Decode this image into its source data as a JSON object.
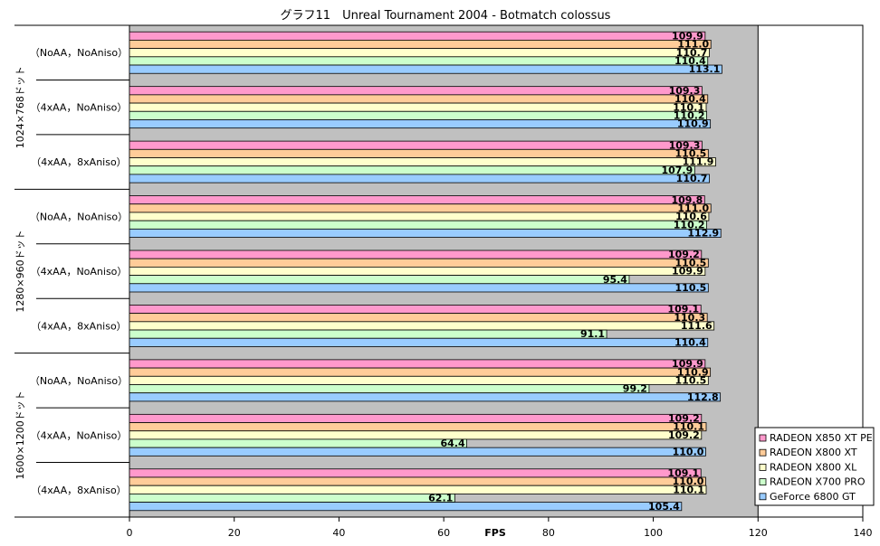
{
  "chart_data": {
    "type": "bar",
    "orientation": "horizontal",
    "title": "グラフ11　Unreal Tournament 2004 - Botmatch colossus",
    "xlabel": "FPS",
    "xlim": [
      0,
      140
    ],
    "xticks": [
      "0",
      "20",
      "40",
      "60",
      "80",
      "100",
      "120",
      "140"
    ],
    "highlight_range": [
      0,
      120
    ],
    "legend_position": "bottom-right",
    "series": [
      {
        "name": "RADEON X850 XT PE",
        "color": "#ff99cc"
      },
      {
        "name": "RADEON X800 XT",
        "color": "#ffcc99"
      },
      {
        "name": "RADEON X800 XL",
        "color": "#ffffcc"
      },
      {
        "name": "RADEON X700 PRO",
        "color": "#ccffcc"
      },
      {
        "name": "GeForce 6800 GT",
        "color": "#99ccff"
      }
    ],
    "resolutions": [
      {
        "label": "1024×768ドット",
        "configs": [
          {
            "label": "（NoAA，NoAniso）",
            "values": [
              109.9,
              111.0,
              110.7,
              110.4,
              113.1
            ],
            "labels": [
              "109.9",
              "111.0",
              "110.7",
              "110.4",
              "113.1"
            ]
          },
          {
            "label": "（4xAA，NoAniso）",
            "values": [
              109.3,
              110.4,
              110.1,
              110.2,
              110.9
            ],
            "labels": [
              "109.3",
              "110.4",
              "110.1",
              "110.2",
              "110.9"
            ]
          },
          {
            "label": "（4xAA，8xAniso）",
            "values": [
              109.3,
              110.5,
              111.9,
              107.9,
              110.7
            ],
            "labels": [
              "109.3",
              "110.5",
              "111.9",
              "107.9",
              "110.7"
            ]
          }
        ]
      },
      {
        "label": "1280×960ドット",
        "configs": [
          {
            "label": "（NoAA，NoAniso）",
            "values": [
              109.8,
              111.0,
              110.6,
              110.2,
              112.9
            ],
            "labels": [
              "109.8",
              "111.0",
              "110.6",
              "110.2",
              "112.9"
            ]
          },
          {
            "label": "（4xAA，NoAniso）",
            "values": [
              109.2,
              110.5,
              109.9,
              95.4,
              110.5
            ],
            "labels": [
              "109.2",
              "110.5",
              "109.9",
              "95.4",
              "110.5"
            ]
          },
          {
            "label": "（4xAA，8xAniso）",
            "values": [
              109.1,
              110.3,
              111.6,
              91.1,
              110.4
            ],
            "labels": [
              "109.1",
              "110.3",
              "111.6",
              "91.1",
              "110.4"
            ]
          }
        ]
      },
      {
        "label": "1600×1200ドット",
        "configs": [
          {
            "label": "（NoAA，NoAniso）",
            "values": [
              109.9,
              110.9,
              110.5,
              99.2,
              112.8
            ],
            "labels": [
              "109.9",
              "110.9",
              "110.5",
              "99.2",
              "112.8"
            ]
          },
          {
            "label": "（4xAA，NoAniso）",
            "values": [
              109.2,
              110.1,
              109.2,
              64.4,
              110.0
            ],
            "labels": [
              "109.2",
              "110.1",
              "109.2",
              "64.4",
              "110.0"
            ]
          },
          {
            "label": "（4xAA，8xAniso）",
            "values": [
              109.1,
              110.0,
              110.1,
              62.1,
              105.4
            ],
            "labels": [
              "109.1",
              "110.0",
              "110.1",
              "62.1",
              "105.4"
            ]
          }
        ]
      }
    ],
    "colors": {
      "plot_gray": "#c0c0c0",
      "bar_stroke": "#000000"
    }
  }
}
